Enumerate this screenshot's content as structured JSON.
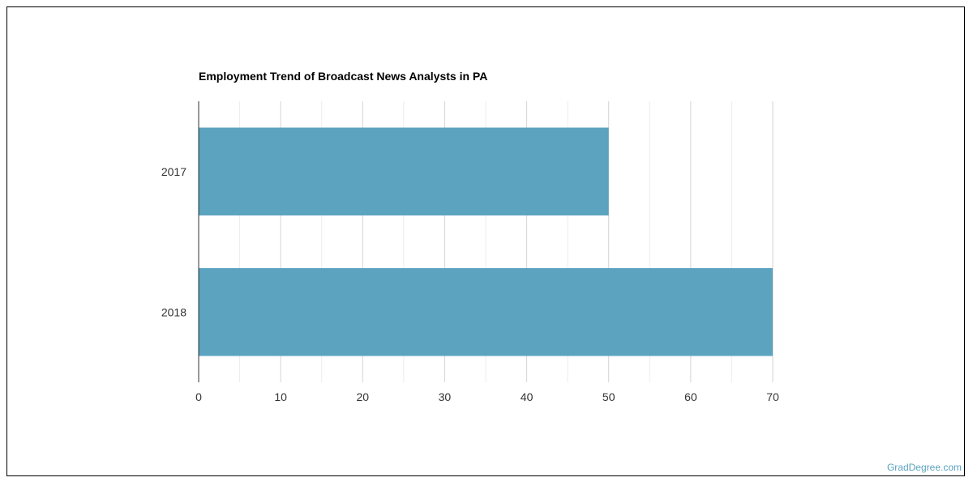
{
  "chart_data": {
    "type": "bar",
    "orientation": "horizontal",
    "title": "Employment Trend of Broadcast News Analysts in PA",
    "categories": [
      "2017",
      "2018"
    ],
    "values": [
      50,
      70
    ],
    "xlim": [
      0,
      70
    ],
    "xticks": [
      0,
      10,
      20,
      30,
      40,
      50,
      60,
      70
    ],
    "grid": true,
    "bar_color": "#5ba3bf"
  },
  "credit": {
    "text": "GradDegree.com",
    "color": "#5ba3bf"
  }
}
